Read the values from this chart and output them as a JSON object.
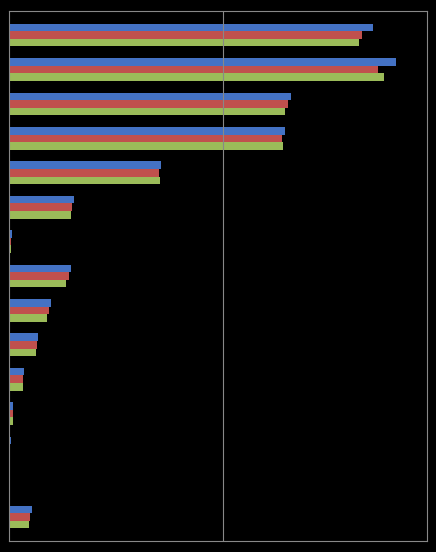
{
  "series": [
    {
      "color": "#4472C4",
      "values": [
        2350,
        2500,
        1820,
        1780,
        980,
        420,
        18,
        400,
        270,
        190,
        100,
        30,
        12,
        5,
        150
      ]
    },
    {
      "color": "#C0504D",
      "values": [
        2280,
        2380,
        1800,
        1760,
        970,
        410,
        15,
        390,
        260,
        185,
        95,
        28,
        10,
        4,
        140
      ]
    },
    {
      "color": "#9BBB59",
      "values": [
        2260,
        2420,
        1780,
        1770,
        975,
        400,
        12,
        370,
        250,
        175,
        90,
        25,
        9,
        3,
        130
      ]
    }
  ],
  "n_categories": 15,
  "xlim": [
    0,
    2700
  ],
  "bar_height": 0.22,
  "background_color": "#000000",
  "plot_bg_color": "#000000",
  "vline_x": 1380,
  "vline_color": "#888888",
  "spine_color": "#888888"
}
